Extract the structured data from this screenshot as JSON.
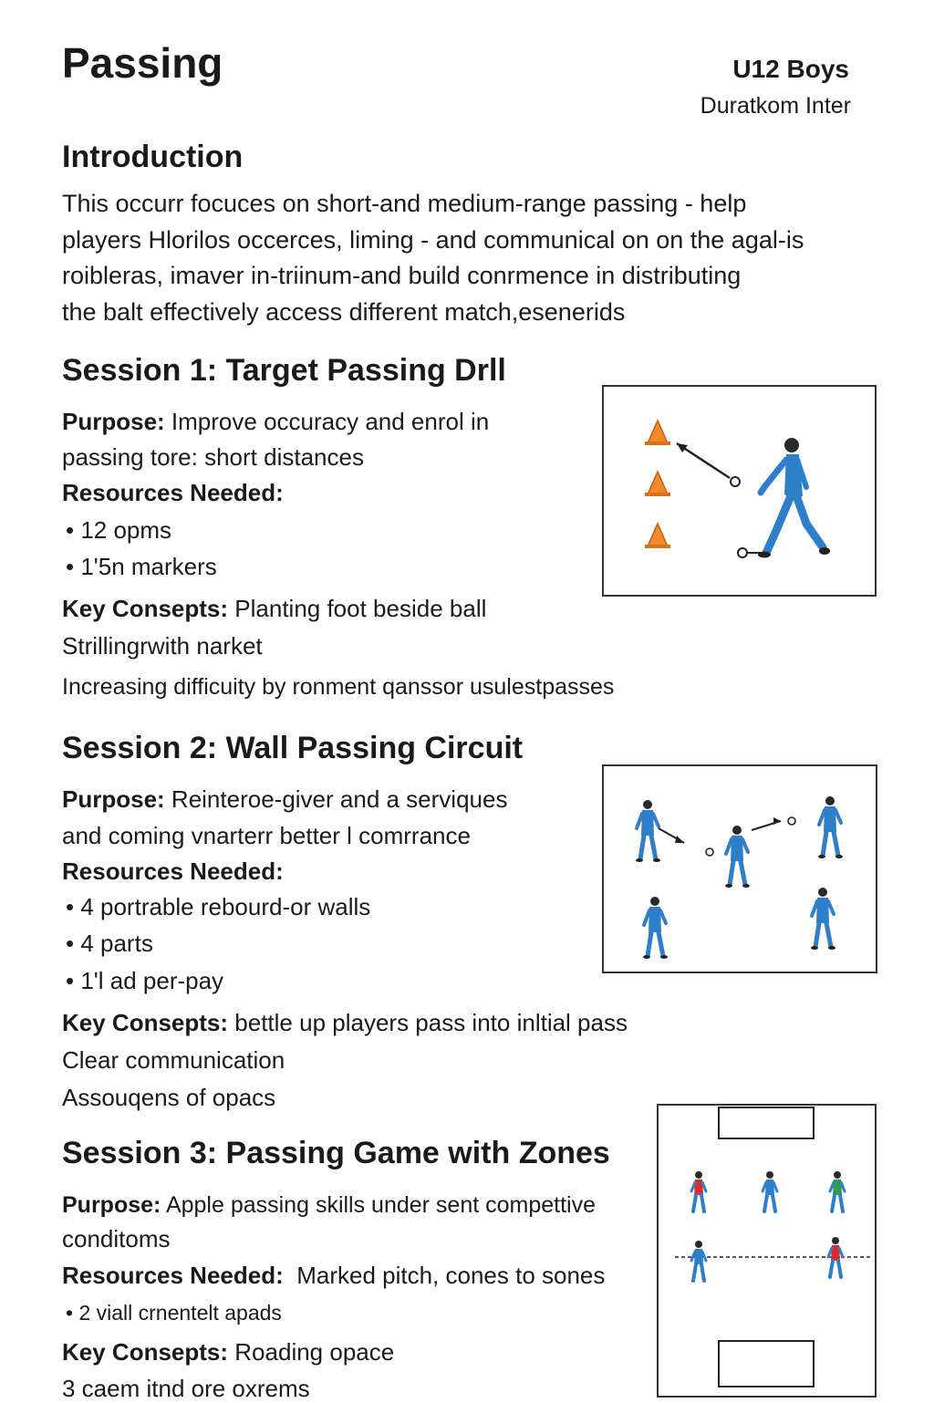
{
  "header": {
    "title": "Passing",
    "team": "U12 Boys",
    "club": "Duratkom Inter"
  },
  "introduction": {
    "heading": "Introduction",
    "lines": [
      "This occurr focuces on short-and medium-range passing - help",
      "players Hlorilos occerces, liming - and communical on on the agal-is",
      "roibleras, imaver in-triinum-and build conrmence in distributing",
      "the balt effectively access different match,esenerids"
    ]
  },
  "sessions": [
    {
      "heading": "Session 1: Target Passing Drll",
      "purpose_label": "Purpose:",
      "purpose_lines": [
        "Improve occuracy and  enrol in",
        "passing tore: short distances"
      ],
      "resources_label": "Resources Needed:",
      "resources": [
        "12 opms",
        "1'5n markers"
      ],
      "key_label": "Key Consepts:",
      "key_first": "Planting foot beside ball",
      "key_lines": [
        "Strillingrwith narket",
        "Increasing difficuity by ronment qanssor usulestpasses"
      ],
      "diagram_icons": [
        "cone-icon",
        "ball-icon",
        "player-icon"
      ]
    },
    {
      "heading": "Session 2: Wall Passing Circuit",
      "purpose_label": "Purpose:",
      "purpose_lines": [
        "Reinteroe-giver and a serviques",
        "and coming vnarterr better l comrrance"
      ],
      "resources_label": "Resources Needed:",
      "resources": [
        "4 portrable rebourd-or walls",
        "4 parts",
        "1'l ad per-pay"
      ],
      "key_label": "Key Consepts:",
      "key_first": "bettle up players pass into inltial pass",
      "key_lines": [
        "Clear communication",
        "Assouqens of opacs"
      ],
      "diagram_icons": [
        "player-icon",
        "ball-icon"
      ]
    },
    {
      "heading": "Session 3: Passing Game with Zones",
      "purpose_label": "Purpose:",
      "purpose_lines": [
        "Apple passing skills under sent compettive",
        "conditoms"
      ],
      "resources_label": "Resources Needed:",
      "resources_inline": "Marked pitch, cones to sones",
      "resources": [
        "2 viall crnentelt apads"
      ],
      "key_label": "Key Consepts:",
      "key_first": "Roading opace",
      "key_lines": [
        "3 caem itnd ore oxrems"
      ],
      "diagram_icons": [
        "pitch-icon",
        "player-icon"
      ]
    }
  ],
  "colors": {
    "player_blue": "#2f7fc8",
    "cone_orange": "#f08a2a",
    "team_red": "#e02a2a",
    "team_green": "#2aa04a",
    "text": "#1a1a1a"
  }
}
